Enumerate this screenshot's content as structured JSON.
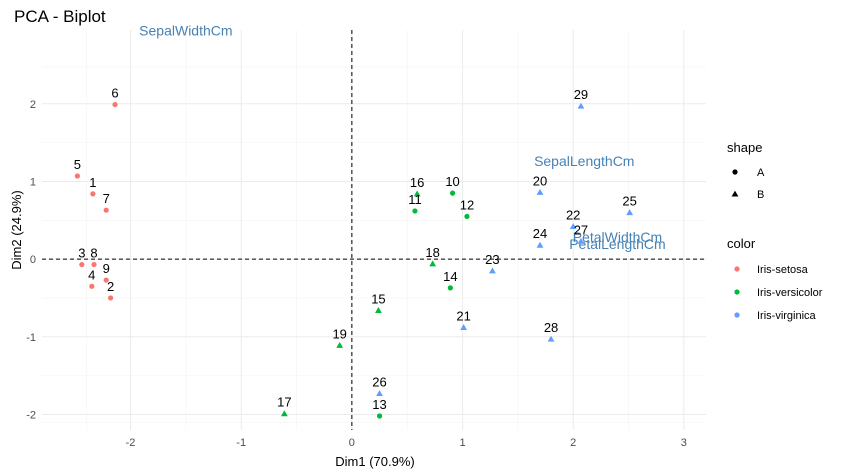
{
  "chart_data": {
    "type": "scatter",
    "title": "PCA - Biplot",
    "xlabel": "Dim1 (70.9%)",
    "ylabel": "Dim2 (24.9%)",
    "xlim": [
      -2.8,
      3.2
    ],
    "ylim": [
      -2.2,
      2.95
    ],
    "x_ticks": [
      -2,
      -1,
      0,
      1,
      2,
      3
    ],
    "y_ticks": [
      -2,
      -1,
      0,
      1,
      2
    ],
    "grid": true,
    "reference_lines": {
      "x": 0,
      "y": 0,
      "style": "dashed"
    },
    "colors": {
      "Iris-setosa": "#f8766d",
      "Iris-versicolor": "#00ba38",
      "Iris-virginica": "#619cff",
      "variables": "#4682b4"
    },
    "points": [
      {
        "label": "1",
        "x": -2.34,
        "y": 0.84,
        "color": "Iris-setosa",
        "shape": "A"
      },
      {
        "label": "2",
        "x": -2.18,
        "y": -0.5,
        "color": "Iris-setosa",
        "shape": "A"
      },
      {
        "label": "3",
        "x": -2.44,
        "y": -0.07,
        "color": "Iris-setosa",
        "shape": "A"
      },
      {
        "label": "4",
        "x": -2.35,
        "y": -0.35,
        "color": "Iris-setosa",
        "shape": "A"
      },
      {
        "label": "5",
        "x": -2.48,
        "y": 1.07,
        "color": "Iris-setosa",
        "shape": "A"
      },
      {
        "label": "6",
        "x": -2.14,
        "y": 1.99,
        "color": "Iris-setosa",
        "shape": "A"
      },
      {
        "label": "7",
        "x": -2.22,
        "y": 0.63,
        "color": "Iris-setosa",
        "shape": "A"
      },
      {
        "label": "8",
        "x": -2.33,
        "y": -0.07,
        "color": "Iris-setosa",
        "shape": "A"
      },
      {
        "label": "9",
        "x": -2.22,
        "y": -0.27,
        "color": "Iris-setosa",
        "shape": "A"
      },
      {
        "label": "10",
        "x": 0.91,
        "y": 0.85,
        "color": "Iris-versicolor",
        "shape": "A"
      },
      {
        "label": "11",
        "x": 0.57,
        "y": 0.62,
        "color": "Iris-versicolor",
        "shape": "A"
      },
      {
        "label": "12",
        "x": 1.04,
        "y": 0.55,
        "color": "Iris-versicolor",
        "shape": "A"
      },
      {
        "label": "13",
        "x": 0.25,
        "y": -2.02,
        "color": "Iris-versicolor",
        "shape": "A"
      },
      {
        "label": "14",
        "x": 0.89,
        "y": -0.37,
        "color": "Iris-versicolor",
        "shape": "A"
      },
      {
        "label": "15",
        "x": 0.24,
        "y": -0.66,
        "color": "Iris-versicolor",
        "shape": "B"
      },
      {
        "label": "16",
        "x": 0.59,
        "y": 0.84,
        "color": "Iris-versicolor",
        "shape": "B"
      },
      {
        "label": "17",
        "x": -0.61,
        "y": -1.99,
        "color": "Iris-versicolor",
        "shape": "B"
      },
      {
        "label": "18",
        "x": 0.73,
        "y": -0.06,
        "color": "Iris-versicolor",
        "shape": "B"
      },
      {
        "label": "19",
        "x": -0.11,
        "y": -1.11,
        "color": "Iris-versicolor",
        "shape": "B"
      },
      {
        "label": "20",
        "x": 1.7,
        "y": 0.86,
        "color": "Iris-virginica",
        "shape": "B"
      },
      {
        "label": "21",
        "x": 1.01,
        "y": -0.88,
        "color": "Iris-virginica",
        "shape": "B"
      },
      {
        "label": "22",
        "x": 2.0,
        "y": 0.42,
        "color": "Iris-virginica",
        "shape": "B"
      },
      {
        "label": "23",
        "x": 1.27,
        "y": -0.15,
        "color": "Iris-virginica",
        "shape": "B"
      },
      {
        "label": "24",
        "x": 1.7,
        "y": 0.18,
        "color": "Iris-virginica",
        "shape": "B"
      },
      {
        "label": "25",
        "x": 2.51,
        "y": 0.6,
        "color": "Iris-virginica",
        "shape": "B"
      },
      {
        "label": "26",
        "x": 0.25,
        "y": -1.73,
        "color": "Iris-virginica",
        "shape": "B"
      },
      {
        "label": "27",
        "x": 2.07,
        "y": 0.23,
        "color": "Iris-virginica",
        "shape": "B"
      },
      {
        "label": "28",
        "x": 1.8,
        "y": -1.03,
        "color": "Iris-virginica",
        "shape": "B"
      },
      {
        "label": "29",
        "x": 2.07,
        "y": 1.97,
        "color": "Iris-virginica",
        "shape": "B"
      }
    ],
    "variables": [
      {
        "label": "SepalWidthCm",
        "x": -1.5,
        "y": 2.88
      },
      {
        "label": "SepalLengthCm",
        "x": 2.1,
        "y": 1.2
      },
      {
        "label": "PetalWidthCm",
        "x": 2.4,
        "y": 0.22
      },
      {
        "label": "PetalLengthCm",
        "x": 2.4,
        "y": 0.13
      }
    ],
    "legend": {
      "placement": "right",
      "shape_title": "shape",
      "shape_items": [
        "A",
        "B"
      ],
      "color_title": "color",
      "color_items": [
        "Iris-setosa",
        "Iris-versicolor",
        "Iris-virginica"
      ]
    }
  }
}
